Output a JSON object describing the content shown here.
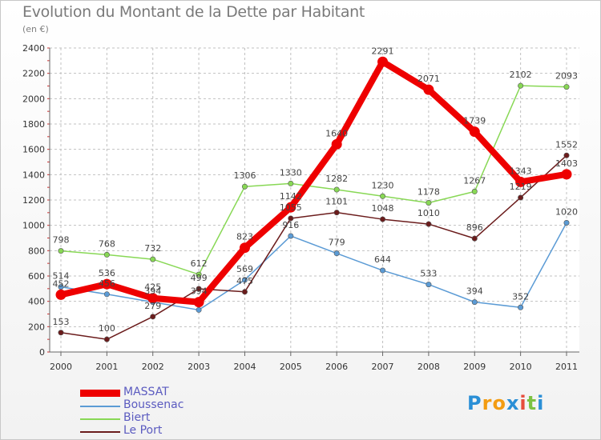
{
  "chart_data": {
    "type": "line",
    "title": "Evolution du Montant de la Dette par Habitant",
    "subtitle": "(en €)",
    "x": [
      "2000",
      "2001",
      "2002",
      "2003",
      "2004",
      "2005",
      "2006",
      "2007",
      "2008",
      "2009",
      "2010",
      "2011"
    ],
    "ylim": [
      0,
      2400
    ],
    "yticks": [
      0,
      200,
      400,
      600,
      800,
      1000,
      1200,
      1400,
      1600,
      1800,
      2000,
      2200,
      2400
    ],
    "grid": true,
    "legend_position": "bottom-left",
    "series": [
      {
        "name": "MASSAT",
        "color": "#ee0000",
        "values": [
          452,
          536,
          425,
          394,
          823,
          1142,
          1640,
          2291,
          2071,
          1739,
          1343,
          1403
        ],
        "labels": [
          "452",
          "536",
          "425",
          "394",
          "823",
          "1142",
          "1640",
          "2291",
          "2071",
          "1739",
          "1343",
          "1403"
        ]
      },
      {
        "name": "Boussenac",
        "color": "#5b9bd5",
        "values": [
          514,
          456,
          394,
          332,
          569,
          916,
          779,
          644,
          533,
          394,
          352,
          1020
        ],
        "labels": [
          "514",
          "456",
          "394",
          "",
          "569",
          "916",
          "779",
          "644",
          "533",
          "394",
          "352",
          "1020"
        ]
      },
      {
        "name": "Biert",
        "color": "#88d855",
        "values": [
          798,
          768,
          732,
          612,
          1306,
          1330,
          1282,
          1230,
          1178,
          1267,
          2102,
          2093
        ],
        "labels": [
          "798",
          "768",
          "732",
          "612",
          "1306",
          "1330",
          "1282",
          "1230",
          "1178",
          "1267",
          "2102",
          "2093"
        ]
      },
      {
        "name": "Le Port",
        "color": "#6b1c1c",
        "values": [
          153,
          100,
          279,
          499,
          475,
          1055,
          1101,
          1048,
          1010,
          896,
          1219,
          1552
        ],
        "labels": [
          "153",
          "100",
          "279",
          "499",
          "475",
          "1055",
          "1101",
          "1048",
          "1010",
          "896",
          "1219",
          "1552"
        ]
      }
    ]
  },
  "logo": {
    "letters": [
      "P",
      "r",
      "o",
      "x",
      "i",
      "t",
      "i"
    ],
    "colors": [
      "#2a8fd6",
      "#f39c12",
      "#f39c12",
      "#2a8fd6",
      "#e74c3c",
      "#7cc242",
      "#2a8fd6"
    ]
  }
}
